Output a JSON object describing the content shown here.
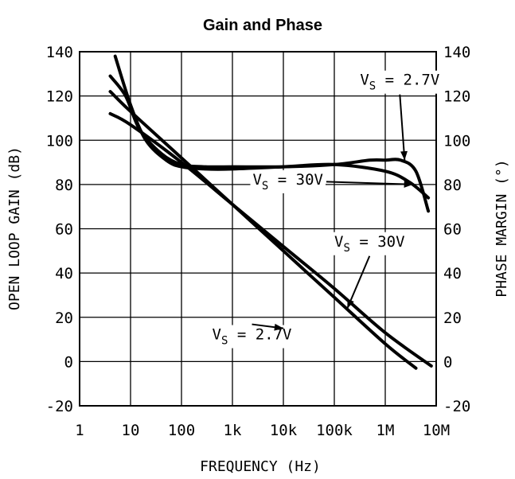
{
  "chart_data": {
    "type": "line",
    "title": "Gain and Phase",
    "xlabel": "FREQUENCY (Hz)",
    "ylabel_left": "OPEN LOOP GAIN (dB)",
    "ylabel_right": "PHASE MARGIN (°)",
    "x_scale": "log",
    "xlim": [
      1,
      10000000
    ],
    "ylim": [
      -20,
      140
    ],
    "x_ticks": [
      {
        "value": 1,
        "label": "1"
      },
      {
        "value": 10,
        "label": "10"
      },
      {
        "value": 100,
        "label": "100"
      },
      {
        "value": 1000,
        "label": "1k"
      },
      {
        "value": 10000,
        "label": "10k"
      },
      {
        "value": 100000,
        "label": "100k"
      },
      {
        "value": 1000000,
        "label": "1M"
      },
      {
        "value": 10000000,
        "label": "10M"
      }
    ],
    "y_ticks": [
      {
        "value": -20,
        "label": "-20"
      },
      {
        "value": 0,
        "label": "0"
      },
      {
        "value": 20,
        "label": "20"
      },
      {
        "value": 40,
        "label": "40"
      },
      {
        "value": 60,
        "label": "60"
      },
      {
        "value": 80,
        "label": "80"
      },
      {
        "value": 100,
        "label": "100"
      },
      {
        "value": 120,
        "label": "120"
      },
      {
        "value": 140,
        "label": "140"
      }
    ],
    "grid": true,
    "series": [
      {
        "axis": "left",
        "x": [
          4,
          10,
          100,
          1000,
          10000,
          100000,
          1000000,
          4000000
        ],
        "y": [
          122,
          113,
          92,
          71,
          50,
          29,
          8,
          -3
        ]
      },
      {
        "axis": "left",
        "x": [
          4,
          10,
          100,
          1000,
          10000,
          100000,
          1000000,
          8000000
        ],
        "y": [
          112,
          107,
          90,
          71,
          52,
          33,
          13,
          -2
        ]
      },
      {
        "axis": "right",
        "x": [
          4,
          8,
          15,
          40,
          100,
          300,
          1000,
          10000,
          100000,
          500000,
          1000000,
          2000000,
          4000000,
          7000000
        ],
        "y": [
          129,
          120,
          105,
          94,
          89,
          88,
          88,
          88,
          89,
          91,
          91,
          91,
          86,
          68
        ]
      },
      {
        "axis": "right",
        "x": [
          5,
          10,
          20,
          50,
          100,
          300,
          1000,
          10000,
          100000,
          1000000,
          3000000,
          7000000
        ],
        "y": [
          138,
          116,
          100,
          91,
          88,
          87,
          87,
          88,
          89,
          86,
          81,
          74
        ]
      }
    ],
    "annotations": [
      {
        "text": "V",
        "subscript": "S",
        "suffix": "= 2.7V",
        "x": 320000,
        "y": 125,
        "arrow_to": {
          "x": 2400000,
          "y": 91
        }
      },
      {
        "text": "V",
        "subscript": "S",
        "suffix": "= 30V",
        "x": 2500,
        "y": 80,
        "arrow_to": {
          "x": 3500000,
          "y": 80
        }
      },
      {
        "text": "V",
        "subscript": "S",
        "suffix": "= 30V",
        "x": 100000,
        "y": 52,
        "arrow_to": {
          "x": 180000,
          "y": 24
        }
      },
      {
        "text": "V",
        "subscript": "S",
        "suffix": "= 2.7V",
        "x": 400,
        "y": 10,
        "arrow_to": {
          "x": 10000,
          "y": 15
        }
      }
    ]
  }
}
